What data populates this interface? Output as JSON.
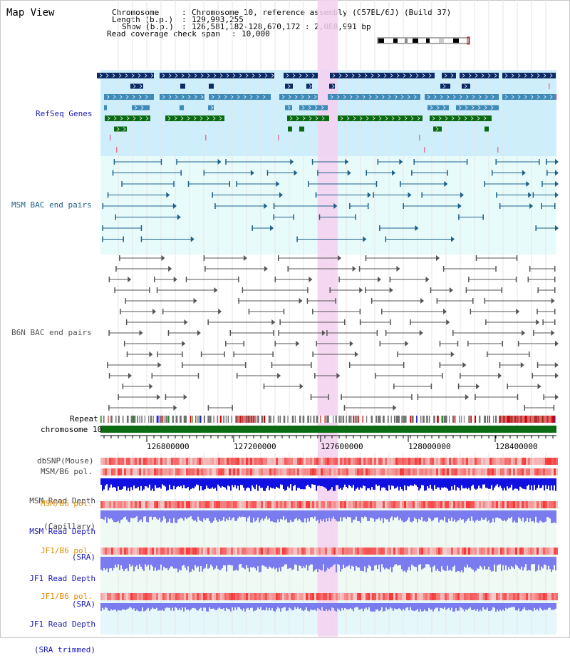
{
  "title": "Map View",
  "info": {
    "chromosome_label": "Chromosome",
    "chromosome_value": "Chromosome 10, reference assembly (C57BL/6J) (Build 37)",
    "length_label": "Length (b.p.)",
    "length_value": "129,993,255",
    "show_label": "Show (b.p.)",
    "show_value": "126,581,182-128,670,172 : 2,088,991 bp",
    "coverage_label": "Read coverage check span",
    "coverage_value": "10,000"
  },
  "tracks": {
    "refseq": "RefSeq Genes",
    "msm_bac": "MSM BAC end pairs",
    "b6n_bac": "B6N BAC end pairs",
    "repeat": "Repeat",
    "chromosome": "chromosome 10",
    "dbsnp": "dbSNP(Mouse)",
    "msm_b6_pol_1": "MSM/B6 pol.",
    "msm_depth_cap_1": "MSM Read Depth",
    "msm_depth_cap_2": "(Capillary)",
    "msm_b6_pol_2": "MSM/B6 pol.",
    "msm_depth_sra_1": "MSM Read Depth",
    "msm_depth_sra_2": "(SRA)",
    "jf1_b6_pol_1": "JF1/B6 pol.",
    "jf1_depth_sra_1": "JF1 Read Depth",
    "jf1_depth_sra_2": "(SRA)",
    "jf1_b6_pol_2": "JF1/B6 pol.",
    "jf1_depth_trim_1": "JF1 Read Depth",
    "jf1_depth_trim_2": "(SRA trimmed)"
  },
  "axis": {
    "ticks": [
      "126800000",
      "127200000",
      "127600000",
      "128000000",
      "128400000"
    ]
  },
  "colors": {
    "refseq_bg": "#cdeefa",
    "bac_bg": "#e8fbfb",
    "highlight": "#f5d0f0",
    "msm_color": "#1d5f8a",
    "b6n_color": "#555555",
    "gene_dark": "#0b2a66",
    "gene_mid": "#3f8ab8",
    "gene_green": "#0b6b12",
    "depth_blue": "#1010e0",
    "depth_light": "#7b7bf0",
    "label_blue": "#1a1ab4",
    "label_orange": "#e08a00",
    "label_teal": "#1d5f8a"
  }
}
